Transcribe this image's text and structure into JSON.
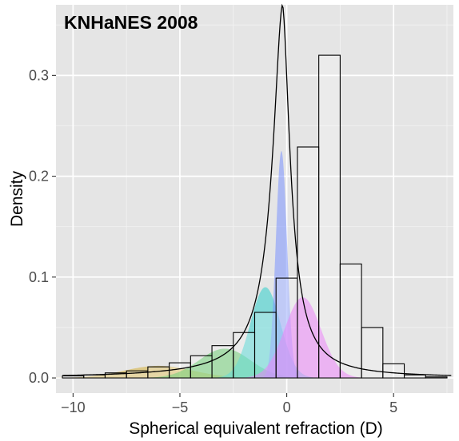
{
  "chart_data": {
    "type": "histogram_density",
    "title": "KNHaNES 2008",
    "xlabel": "Spherical equivalent refraction (D)",
    "ylabel": "Density",
    "xlim": [
      -10.8,
      7.8
    ],
    "ylim": [
      -0.015,
      0.37
    ],
    "x_ticks": [
      -10,
      -5,
      0,
      5
    ],
    "x_tick_labels": [
      "−10",
      "−5",
      "0",
      "5"
    ],
    "y_ticks": [
      0.0,
      0.1,
      0.2,
      0.3
    ],
    "y_tick_labels": [
      "0.0",
      "0.1",
      "0.2",
      "0.3"
    ],
    "grid": true,
    "histogram": {
      "bin_width": 1,
      "bins": [
        {
          "x0": -10.5,
          "x1": -9.5,
          "density": 0.002
        },
        {
          "x0": -9.5,
          "x1": -8.5,
          "density": 0.003
        },
        {
          "x0": -8.5,
          "x1": -7.5,
          "density": 0.005
        },
        {
          "x0": -7.5,
          "x1": -6.5,
          "density": 0.007
        },
        {
          "x0": -6.5,
          "x1": -5.5,
          "density": 0.011
        },
        {
          "x0": -5.5,
          "x1": -4.5,
          "density": 0.015
        },
        {
          "x0": -4.5,
          "x1": -3.5,
          "density": 0.022
        },
        {
          "x0": -3.5,
          "x1": -2.5,
          "density": 0.032
        },
        {
          "x0": -2.5,
          "x1": -1.5,
          "density": 0.045
        },
        {
          "x0": -1.5,
          "x1": -0.5,
          "density": 0.065
        },
        {
          "x0": -0.5,
          "x1": 0.5,
          "density": 0.099
        },
        {
          "x0": 0.5,
          "x1": 1.5,
          "density": 0.229
        },
        {
          "x0": 1.5,
          "x1": 2.5,
          "density": 0.32
        },
        {
          "x0": 2.5,
          "x1": 3.5,
          "density": 0.113
        },
        {
          "x0": 3.5,
          "x1": 4.5,
          "density": 0.05
        },
        {
          "x0": 4.5,
          "x1": 5.5,
          "density": 0.014
        },
        {
          "x0": 5.5,
          "x1": 6.5,
          "density": 0.003
        },
        {
          "x0": 6.5,
          "x1": 7.5,
          "density": 0.001
        }
      ]
    },
    "components": [
      {
        "color": "#d6b13b",
        "mean": -6.0,
        "sd": 1.6,
        "peak": 0.012
      },
      {
        "color": "#43c14c",
        "mean": -2.9,
        "sd": 1.2,
        "peak": 0.029
      },
      {
        "color": "#2fd0cc",
        "mean": -1.0,
        "sd": 0.7,
        "peak": 0.09
      },
      {
        "color": "#7b93ff",
        "mean": -0.25,
        "sd": 0.26,
        "peak": 0.225
      },
      {
        "color": "#e35cf5",
        "mean": 0.75,
        "sd": 0.85,
        "peak": 0.08
      }
    ],
    "mixture_curve": {
      "color": "#000000",
      "peak_location": -0.2,
      "peak_density": 0.37
    }
  },
  "colors": {
    "panel_background": "#e5e5e5",
    "grid_major": "#ffffff",
    "grid_minor": "#f2f2f2",
    "bar_fill": "#ffffff",
    "bar_stroke": "#000000"
  }
}
